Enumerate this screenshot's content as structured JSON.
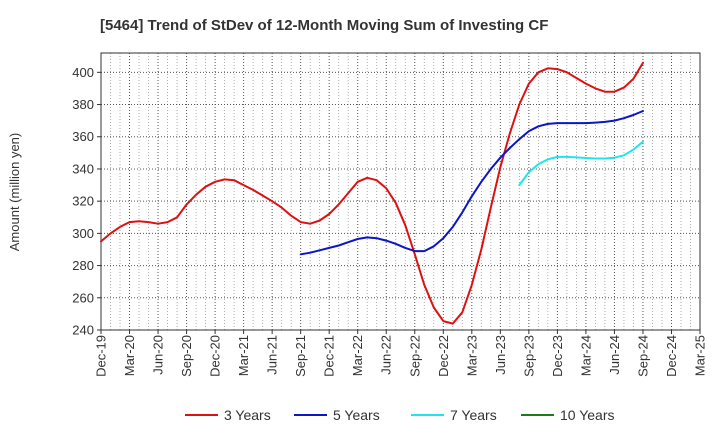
{
  "chart_data": {
    "type": "line",
    "title": "[5464]  Trend of StDev of 12-Month Moving Sum of Investing CF",
    "xlabel": "",
    "ylabel": "Amount (million yen)",
    "ylim": [
      240,
      412
    ],
    "yticks": [
      240,
      260,
      280,
      300,
      320,
      340,
      360,
      380,
      400
    ],
    "xlim": [
      "Dec-19",
      "Mar-25"
    ],
    "xticks": [
      "Dec-19",
      "Mar-20",
      "Jun-20",
      "Sep-20",
      "Dec-20",
      "Mar-21",
      "Jun-21",
      "Sep-21",
      "Dec-21",
      "Mar-22",
      "Jun-22",
      "Sep-22",
      "Dec-22",
      "Mar-23",
      "Jun-23",
      "Sep-23",
      "Dec-23",
      "Mar-24",
      "Jun-24",
      "Sep-24",
      "Dec-24",
      "Mar-25"
    ],
    "grid": true,
    "legend_position": "bottom",
    "series": [
      {
        "name": "3 Years",
        "color": "#dd1111",
        "points": [
          [
            "Dec-19",
            295
          ],
          [
            "Jan-20",
            300
          ],
          [
            "Feb-20",
            304
          ],
          [
            "Mar-20",
            307
          ],
          [
            "Apr-20",
            307.5
          ],
          [
            "May-20",
            307
          ],
          [
            "Jun-20",
            306
          ],
          [
            "Jul-20",
            307
          ],
          [
            "Aug-20",
            310
          ],
          [
            "Sep-20",
            318
          ],
          [
            "Oct-20",
            324
          ],
          [
            "Nov-20",
            329
          ],
          [
            "Dec-20",
            332
          ],
          [
            "Jan-21",
            333.5
          ],
          [
            "Feb-21",
            333
          ],
          [
            "Mar-21",
            330
          ],
          [
            "Apr-21",
            327
          ],
          [
            "May-21",
            323.5
          ],
          [
            "Jun-21",
            320
          ],
          [
            "Jul-21",
            316
          ],
          [
            "Aug-21",
            311
          ],
          [
            "Sep-21",
            307
          ],
          [
            "Oct-21",
            306
          ],
          [
            "Nov-21",
            308
          ],
          [
            "Dec-21",
            312
          ],
          [
            "Jan-22",
            318
          ],
          [
            "Feb-22",
            325
          ],
          [
            "Mar-22",
            332
          ],
          [
            "Apr-22",
            334.5
          ],
          [
            "May-22",
            333
          ],
          [
            "Jun-22",
            328
          ],
          [
            "Jul-22",
            319
          ],
          [
            "Aug-22",
            305
          ],
          [
            "Sep-22",
            287
          ],
          [
            "Oct-22",
            268
          ],
          [
            "Nov-22",
            254
          ],
          [
            "Dec-22",
            245.5
          ],
          [
            "Jan-23",
            244
          ],
          [
            "Feb-23",
            251
          ],
          [
            "Mar-23",
            268
          ],
          [
            "Apr-23",
            290
          ],
          [
            "May-23",
            316
          ],
          [
            "Jun-23",
            341
          ],
          [
            "Jul-23",
            362
          ],
          [
            "Aug-23",
            380
          ],
          [
            "Sep-23",
            393
          ],
          [
            "Oct-23",
            400
          ],
          [
            "Nov-23",
            402.5
          ],
          [
            "Dec-23",
            402
          ],
          [
            "Jan-24",
            400
          ],
          [
            "Feb-24",
            396.5
          ],
          [
            "Mar-24",
            393
          ],
          [
            "Apr-24",
            390
          ],
          [
            "May-24",
            388
          ],
          [
            "Jun-24",
            388
          ],
          [
            "Jul-24",
            390.5
          ],
          [
            "Aug-24",
            396
          ],
          [
            "Sep-24",
            406
          ]
        ]
      },
      {
        "name": "5 Years",
        "color": "#0a16c8",
        "points": [
          [
            "Sep-21",
            287
          ],
          [
            "Oct-21",
            288
          ],
          [
            "Nov-21",
            289.5
          ],
          [
            "Dec-21",
            291
          ],
          [
            "Jan-22",
            292.5
          ],
          [
            "Feb-22",
            294.5
          ],
          [
            "Mar-22",
            296.5
          ],
          [
            "Apr-22",
            297.5
          ],
          [
            "May-22",
            297
          ],
          [
            "Jun-22",
            295.5
          ],
          [
            "Jul-22",
            293.5
          ],
          [
            "Aug-22",
            291
          ],
          [
            "Sep-22",
            289
          ],
          [
            "Oct-22",
            289
          ],
          [
            "Nov-22",
            292
          ],
          [
            "Dec-22",
            297
          ],
          [
            "Jan-23",
            304
          ],
          [
            "Feb-23",
            313
          ],
          [
            "Mar-23",
            323
          ],
          [
            "Apr-23",
            332
          ],
          [
            "May-23",
            340
          ],
          [
            "Jun-23",
            347
          ],
          [
            "Jul-23",
            353
          ],
          [
            "Aug-23",
            358.5
          ],
          [
            "Sep-23",
            363.5
          ],
          [
            "Oct-23",
            366.5
          ],
          [
            "Nov-23",
            368
          ],
          [
            "Dec-23",
            368.5
          ],
          [
            "Jan-24",
            368.5
          ],
          [
            "Feb-24",
            368.5
          ],
          [
            "Mar-24",
            368.5
          ],
          [
            "Apr-24",
            368.8
          ],
          [
            "May-24",
            369.2
          ],
          [
            "Jun-24",
            370
          ],
          [
            "Jul-24",
            371.5
          ],
          [
            "Aug-24",
            373.5
          ],
          [
            "Sep-24",
            376
          ]
        ]
      },
      {
        "name": "7 Years",
        "color": "#22e3ec",
        "points": [
          [
            "Aug-23",
            330
          ],
          [
            "Sep-23",
            338
          ],
          [
            "Oct-23",
            343
          ],
          [
            "Nov-23",
            346
          ],
          [
            "Dec-23",
            347.5
          ],
          [
            "Jan-24",
            347.5
          ],
          [
            "Feb-24",
            347.2
          ],
          [
            "Mar-24",
            346.8
          ],
          [
            "Apr-24",
            346.5
          ],
          [
            "May-24",
            346.5
          ],
          [
            "Jun-24",
            347
          ],
          [
            "Jul-24",
            348.5
          ],
          [
            "Aug-24",
            352
          ],
          [
            "Sep-24",
            357
          ]
        ]
      },
      {
        "name": "10 Years",
        "color": "#1a7d1a",
        "points": []
      }
    ]
  }
}
